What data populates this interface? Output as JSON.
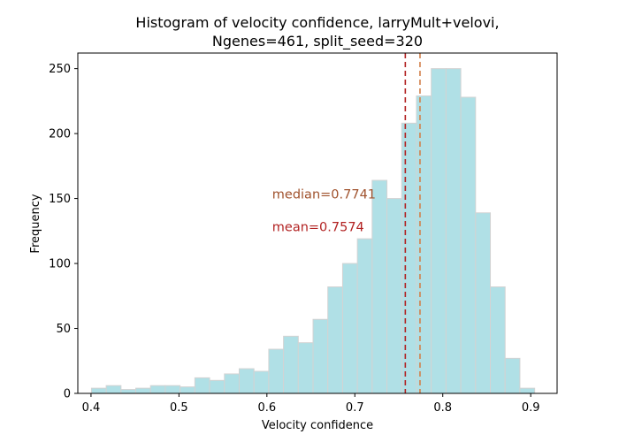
{
  "chart_data": {
    "type": "bar",
    "title_lines": [
      "Histogram of velocity confidence, larryMult+velovi,",
      "Ngenes=461, split_seed=320"
    ],
    "xlabel": "Velocity confidence",
    "ylabel": "Frequency",
    "xlim": [
      0.385,
      0.93
    ],
    "ylim": [
      0,
      262
    ],
    "xticks": [
      0.4,
      0.5,
      0.6,
      0.7,
      0.8,
      0.9
    ],
    "xtick_labels": [
      "0.4",
      "0.5",
      "0.6",
      "0.7",
      "0.8",
      "0.9"
    ],
    "yticks": [
      0,
      50,
      100,
      150,
      200,
      250
    ],
    "ytick_labels": [
      "0",
      "50",
      "100",
      "150",
      "200",
      "250"
    ],
    "bar_color": "#b0e0e6",
    "bar_edge_color": "#d3d3d3",
    "bin_edges": [
      0.4005,
      0.4173,
      0.4341,
      0.4509,
      0.4677,
      0.4845,
      0.5013,
      0.5181,
      0.5349,
      0.5517,
      0.5685,
      0.5853,
      0.6021,
      0.6189,
      0.6357,
      0.6525,
      0.6693,
      0.6861,
      0.7029,
      0.7197,
      0.7365,
      0.7533,
      0.7701,
      0.7869,
      0.8037,
      0.8205,
      0.8373,
      0.8541,
      0.8709,
      0.8877,
      0.9045
    ],
    "counts": [
      4,
      6,
      3,
      4,
      6,
      6,
      5,
      12,
      10,
      15,
      19,
      17,
      34,
      44,
      39,
      57,
      82,
      100,
      119,
      164,
      150,
      208,
      229,
      250,
      250,
      228,
      139,
      82,
      27,
      4
    ],
    "vlines": [
      {
        "x": 0.7574,
        "color": "#b22222",
        "style": "dashed"
      },
      {
        "x": 0.7741,
        "color": "#d2804a",
        "style": "dashed"
      }
    ],
    "annotations": [
      {
        "text": "median=0.7741",
        "x": 0.606,
        "y": 150,
        "color": "#a0522d"
      },
      {
        "text": "mean=0.7574",
        "x": 0.606,
        "y": 125,
        "color": "#b22222"
      }
    ]
  }
}
